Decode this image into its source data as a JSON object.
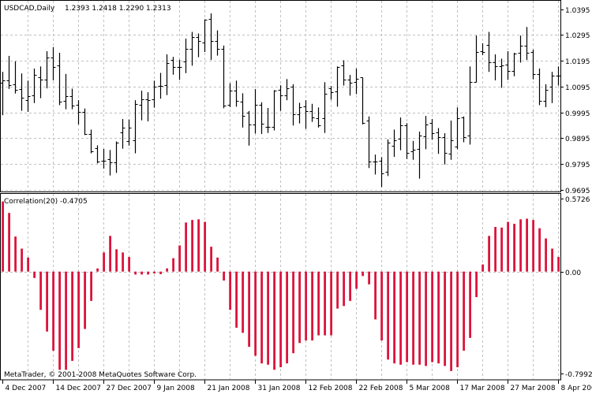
{
  "price_panel": {
    "symbol_label": "USDCAD,Daily",
    "ohlc_label": "1.2393 1.2418 1.2290 1.2313",
    "y_ticks": [
      "1.0395",
      "1.0295",
      "1.0195",
      "1.0095",
      "0.9995",
      "0.9895",
      "0.9795",
      "0.9695"
    ]
  },
  "indicator_panel": {
    "label": "Correlation(20) -0.4705",
    "y_ticks": [
      "0.5726",
      "0.00",
      "-0.7992"
    ],
    "copyright": "MetaTrader, © 2001-2008 MetaQuotes Software Corp."
  },
  "x_ticks": [
    "4 Dec 2007",
    "14 Dec 2007",
    "27 Dec 2007",
    "9 Jan 2008",
    "21 Jan 2008",
    "31 Jan 2008",
    "12 Feb 2008",
    "22 Feb 2008",
    "5 Mar 2008",
    "17 Mar 2008",
    "27 Mar 2008",
    "8 Apr 2008"
  ],
  "colors": {
    "histogram": "#dc143c",
    "bars": "#000000",
    "grid": "#c0c0c0",
    "background": "#ffffff"
  },
  "chart_data": [
    {
      "type": "ohlc",
      "title": "USDCAD,Daily",
      "ylim": [
        0.9695,
        1.0395
      ],
      "grid": true,
      "ohlc_order": [
        "open",
        "high",
        "low",
        "close"
      ],
      "bars": [
        [
          1.011,
          1.0152,
          0.9987,
          1.0118
        ],
        [
          1.0118,
          1.0214,
          1.0089,
          1.01
        ],
        [
          1.0104,
          1.0193,
          1.0071,
          1.0083
        ],
        [
          1.0085,
          1.0146,
          1.0004,
          1.0053
        ],
        [
          1.0042,
          1.0118,
          1.0,
          1.0059
        ],
        [
          1.0061,
          1.0165,
          1.0034,
          1.014
        ],
        [
          1.013,
          1.0173,
          1.0053,
          1.0122
        ],
        [
          1.0122,
          1.0232,
          1.0091,
          1.0208
        ],
        [
          1.0208,
          1.0248,
          1.0122,
          1.0171
        ],
        [
          1.0177,
          1.0226,
          1.0026,
          1.0036
        ],
        [
          1.004,
          1.0144,
          1.001,
          1.0057
        ],
        [
          1.0057,
          1.0087,
          1.001,
          1.0022
        ],
        [
          1.0024,
          1.0042,
          0.9951,
          0.9998
        ],
        [
          0.9998,
          1.001,
          0.991,
          0.9912
        ],
        [
          0.9912,
          0.9928,
          0.9839,
          0.9843
        ],
        [
          0.9857,
          0.9867,
          0.98,
          0.9804
        ],
        [
          0.9808,
          0.9853,
          0.978,
          0.9808
        ],
        [
          0.9814,
          0.9849,
          0.9753,
          0.9802
        ],
        [
          0.98,
          0.9882,
          0.9763,
          0.9877
        ],
        [
          0.9916,
          0.9969,
          0.9857,
          0.9937
        ],
        [
          0.9884,
          0.9967,
          0.9869,
          0.9937
        ],
        [
          0.9888,
          1.0042,
          0.9839,
          1.0026
        ],
        [
          1.0024,
          1.0079,
          0.9967,
          1.0045
        ],
        [
          1.0047,
          1.0073,
          0.9963,
          1.0042
        ],
        [
          1.0045,
          1.0118,
          1.0016,
          1.0095
        ],
        [
          1.0097,
          1.0148,
          1.0051,
          1.0097
        ],
        [
          1.01,
          1.022,
          1.0065,
          1.0185
        ],
        [
          1.0197,
          1.021,
          1.0144,
          1.0171
        ],
        [
          1.0171,
          1.0199,
          1.0124,
          1.0171
        ],
        [
          1.0191,
          1.0281,
          1.015,
          1.0242
        ],
        [
          1.0242,
          1.0307,
          1.0179,
          1.0287
        ],
        [
          1.0287,
          1.0301,
          1.0212,
          1.0271
        ],
        [
          1.0265,
          1.0356,
          1.0232,
          1.0354
        ],
        [
          1.0358,
          1.0379,
          1.0201,
          1.0273
        ],
        [
          1.0273,
          1.0313,
          1.0218,
          1.024
        ],
        [
          1.024,
          1.0254,
          1.0014,
          1.002
        ],
        [
          1.0024,
          1.0108,
          1.0018,
          1.0079
        ],
        [
          1.0079,
          1.0118,
          1.002,
          1.0038
        ],
        [
          1.0036,
          1.0069,
          0.9939,
          0.9981
        ],
        [
          0.9995,
          1.0,
          0.9869,
          0.9947
        ],
        [
          0.9947,
          1.0085,
          0.9916,
          1.0024
        ],
        [
          1.0024,
          1.0034,
          0.9914,
          0.9951
        ],
        [
          0.9939,
          1.0012,
          0.9918,
          0.9939
        ],
        [
          0.9939,
          1.0081,
          0.9928,
          1.0079
        ],
        [
          1.0081,
          1.01,
          1.0004,
          1.0061
        ],
        [
          1.0061,
          1.0124,
          1.0045,
          1.0087
        ],
        [
          1.0093,
          1.0104,
          0.9947,
          0.9987
        ],
        [
          0.9989,
          1.0032,
          0.9955,
          1.0014
        ],
        [
          1.0018,
          1.0042,
          0.9934,
          1.0
        ],
        [
          1.0,
          1.0028,
          0.9961,
          0.9975
        ],
        [
          0.9971,
          1.0014,
          0.9939,
          0.9945
        ],
        [
          0.9971,
          1.0112,
          0.9918,
          1.0067
        ],
        [
          1.0087,
          1.0097,
          1.0047,
          1.0073
        ],
        [
          1.0075,
          1.0173,
          1.002,
          1.0171
        ],
        [
          1.0177,
          1.0197,
          1.0102,
          1.0122
        ],
        [
          1.0122,
          1.014,
          1.0063,
          1.011
        ],
        [
          1.0112,
          1.0165,
          1.0069,
          1.0124
        ],
        [
          1.013,
          1.013,
          0.9951,
          0.9953
        ],
        [
          0.9963,
          0.9979,
          0.9782,
          0.9804
        ],
        [
          0.9804,
          0.9831,
          0.9757,
          0.9804
        ],
        [
          0.9806,
          0.9821,
          0.9708,
          0.9757
        ],
        [
          0.9763,
          0.989,
          0.9751,
          0.9877
        ],
        [
          0.9865,
          0.9928,
          0.9825,
          0.9886
        ],
        [
          0.9894,
          0.9975,
          0.9851,
          0.9945
        ],
        [
          0.9945,
          0.9953,
          0.9817,
          0.9839
        ],
        [
          0.9843,
          0.9884,
          0.9814,
          0.9849
        ],
        [
          0.9853,
          0.992,
          0.9741,
          0.9904
        ],
        [
          0.9902,
          0.9981,
          0.9855,
          0.9947
        ],
        [
          0.9953,
          0.9969,
          0.9892,
          0.9914
        ],
        [
          0.9916,
          0.9934,
          0.9837,
          0.9898
        ],
        [
          0.9898,
          0.9914,
          0.9796,
          0.9839
        ],
        [
          0.9835,
          0.9963,
          0.9814,
          0.9886
        ],
        [
          0.9863,
          1.0014,
          0.9855,
          0.9971
        ],
        [
          0.9975,
          0.9979,
          0.9882,
          0.99
        ],
        [
          0.9904,
          1.0173,
          0.9873,
          1.0114
        ],
        [
          1.0114,
          1.0293,
          1.0114,
          1.0228
        ],
        [
          1.0232,
          1.0263,
          1.022,
          1.023
        ],
        [
          1.0258,
          1.0307,
          1.0155,
          1.0189
        ],
        [
          1.0189,
          1.022,
          1.0122,
          1.0173
        ],
        [
          1.0173,
          1.0203,
          1.0093,
          1.0177
        ],
        [
          1.0179,
          1.0232,
          1.0124,
          1.0157
        ],
        [
          1.0155,
          1.0226,
          1.0138,
          1.0224
        ],
        [
          1.0226,
          1.0293,
          1.0191,
          1.0254
        ],
        [
          1.0252,
          1.0326,
          1.0201,
          1.0226
        ],
        [
          1.0228,
          1.0238,
          1.0126,
          1.0142
        ],
        [
          1.0142,
          1.0165,
          1.0026,
          1.004
        ],
        [
          1.004,
          1.0104,
          1.0018,
          1.0081
        ],
        [
          1.0093,
          1.0152,
          1.0034,
          1.0138
        ],
        [
          1.0138,
          1.0173,
          1.0102,
          1.0138
        ]
      ]
    },
    {
      "type": "bar",
      "title": "Correlation(20) -0.4705",
      "ylim": [
        -0.7992,
        0.5726
      ],
      "grid": true,
      "values": [
        0.55,
        0.46,
        0.275,
        0.18,
        0.11,
        -0.05,
        -0.3,
        -0.47,
        -0.62,
        -0.77,
        -0.77,
        -0.7,
        -0.6,
        -0.45,
        -0.23,
        0.025,
        0.15,
        0.28,
        0.175,
        0.15,
        0.115,
        -0.023,
        -0.023,
        -0.023,
        -0.015,
        -0.02,
        0.025,
        0.105,
        0.205,
        0.385,
        0.405,
        0.41,
        0.39,
        0.195,
        0.11,
        -0.07,
        -0.3,
        -0.44,
        -0.48,
        -0.59,
        -0.66,
        -0.72,
        -0.73,
        -0.77,
        -0.75,
        -0.72,
        -0.64,
        -0.56,
        -0.54,
        -0.54,
        -0.5,
        -0.5,
        -0.5,
        -0.29,
        -0.27,
        -0.23,
        -0.135,
        -0.035,
        -0.1,
        -0.375,
        -0.54,
        -0.69,
        -0.72,
        -0.73,
        -0.71,
        -0.73,
        -0.73,
        -0.74,
        -0.71,
        -0.72,
        -0.74,
        -0.78,
        -0.75,
        -0.62,
        -0.52,
        -0.2,
        0.056,
        0.28,
        0.35,
        0.345,
        0.39,
        0.375,
        0.41,
        0.415,
        0.405,
        0.34,
        0.26,
        0.18,
        0.115
      ]
    }
  ]
}
